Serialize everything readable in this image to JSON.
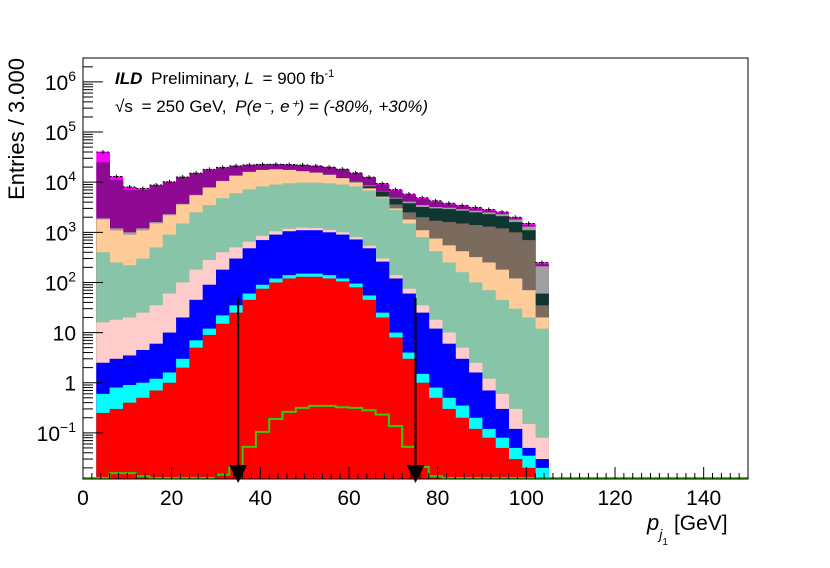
{
  "chart_data": {
    "type": "bar",
    "stacked": true,
    "log_y": true,
    "title": "",
    "experiment": "ILD",
    "status": "Preliminary",
    "lumi_prefix": "L",
    "lumi_value": "= 900 fb",
    "lumi_exp": "-1",
    "sqrt_s_symbol": "√s",
    "energy_text": "= 250 GeV,",
    "polarization_text": "P(e⁻, e⁺) = (-80%, +30%)",
    "xlabel_symbol": "p",
    "xlabel_subscript": "j",
    "xlabel_subsubscript": "1",
    "xlabel_unit": "[GeV]",
    "ylabel": "Entries / 3.000",
    "xlim": [
      0,
      150
    ],
    "ylim": [
      0.012,
      3000000
    ],
    "x_ticks": [
      {
        "value": 0,
        "label": "0"
      },
      {
        "value": 20,
        "label": "20"
      },
      {
        "value": 40,
        "label": "40"
      },
      {
        "value": 60,
        "label": "60"
      },
      {
        "value": 80,
        "label": "80"
      },
      {
        "value": 100,
        "label": "100"
      },
      {
        "value": 120,
        "label": "120"
      },
      {
        "value": 140,
        "label": "140"
      }
    ],
    "y_ticks": [
      {
        "value": 0.1,
        "base": "10",
        "exp": "−1"
      },
      {
        "value": 1,
        "base": "1",
        "exp": ""
      },
      {
        "value": 10,
        "base": "10",
        "exp": ""
      },
      {
        "value": 100,
        "base": "10",
        "exp": "2"
      },
      {
        "value": 1000,
        "base": "10",
        "exp": "3"
      },
      {
        "value": 10000,
        "base": "10",
        "exp": "4"
      },
      {
        "value": 100000,
        "base": "10",
        "exp": "5"
      },
      {
        "value": 1000000,
        "base": "10",
        "exp": "6"
      }
    ],
    "bin_width": 3,
    "bin_lows": [
      0,
      3,
      6,
      9,
      12,
      15,
      18,
      21,
      24,
      27,
      30,
      33,
      36,
      39,
      42,
      45,
      48,
      51,
      54,
      57,
      60,
      63,
      66,
      69,
      72,
      75,
      78,
      81,
      84,
      87,
      90,
      93,
      96,
      99,
      102
    ],
    "series": [
      {
        "name": "red",
        "color": "#ff0000",
        "totals": [
          0.012,
          0.25,
          0.3,
          0.4,
          0.5,
          0.7,
          1.0,
          2,
          5,
          9,
          15,
          25,
          45,
          75,
          100,
          120,
          130,
          130,
          120,
          105,
          80,
          45,
          20,
          8,
          3,
          1.0,
          0.5,
          0.3,
          0.2,
          0.12,
          0.08,
          0.05,
          0.03,
          0.02,
          0.012
        ]
      },
      {
        "name": "cyan",
        "color": "#00ffff",
        "totals": [
          0.012,
          0.6,
          0.8,
          0.9,
          1.0,
          1.2,
          1.6,
          3,
          7,
          12,
          22,
          35,
          60,
          90,
          120,
          140,
          150,
          150,
          140,
          120,
          95,
          55,
          25,
          10,
          4,
          1.5,
          0.8,
          0.5,
          0.35,
          0.2,
          0.12,
          0.08,
          0.05,
          0.035,
          0.02
        ]
      },
      {
        "name": "blue",
        "color": "#0000ff",
        "totals": [
          0.012,
          2.5,
          3.0,
          3.5,
          4.5,
          6,
          10,
          20,
          45,
          90,
          180,
          300,
          480,
          700,
          900,
          1050,
          1100,
          1100,
          1000,
          900,
          720,
          480,
          260,
          120,
          60,
          25,
          12,
          6,
          3,
          1.6,
          0.7,
          0.3,
          0.12,
          0.05,
          0.03
        ]
      },
      {
        "name": "pink",
        "color": "#ffcccc",
        "totals": [
          0.012,
          16,
          18,
          20,
          25,
          35,
          60,
          100,
          180,
          280,
          400,
          500,
          650,
          850,
          1050,
          1180,
          1240,
          1220,
          1120,
          1000,
          800,
          540,
          300,
          140,
          75,
          35,
          18,
          10,
          5,
          2.5,
          1.2,
          0.6,
          0.3,
          0.15,
          0.08
        ]
      },
      {
        "name": "sage",
        "color": "#88c4a8",
        "totals": [
          0.012,
          400,
          250,
          220,
          300,
          500,
          900,
          1500,
          2500,
          3500,
          4800,
          6000,
          7200,
          8200,
          9000,
          9500,
          9800,
          9800,
          9500,
          9000,
          8200,
          6800,
          4800,
          2800,
          1500,
          800,
          420,
          250,
          160,
          100,
          70,
          45,
          30,
          20,
          12
        ]
      },
      {
        "name": "peach",
        "color": "#ffcc99",
        "totals": [
          0.012,
          1800,
          1100,
          900,
          1100,
          1500,
          2200,
          3600,
          5500,
          7800,
          10500,
          13500,
          16000,
          17500,
          18000,
          17500,
          16500,
          15500,
          14000,
          12000,
          9800,
          7500,
          5000,
          3000,
          1800,
          1100,
          750,
          550,
          420,
          320,
          250,
          180,
          120,
          70,
          20
        ]
      },
      {
        "name": "brown",
        "color": "#7b6b5e",
        "totals": [
          0.012,
          1800,
          1100,
          900,
          1100,
          1500,
          2200,
          3600,
          5500,
          7800,
          10500,
          13500,
          16000,
          17500,
          18000,
          17500,
          16500,
          15500,
          14000,
          12000,
          9800,
          7600,
          5300,
          3600,
          2500,
          2000,
          1700,
          1600,
          1500,
          1400,
          1300,
          1200,
          1000,
          700,
          35
        ]
      },
      {
        "name": "darkslate",
        "color": "#103632",
        "totals": [
          0.012,
          1800,
          1100,
          900,
          1100,
          1500,
          2200,
          3600,
          5500,
          7800,
          10500,
          13500,
          16000,
          17500,
          18000,
          17500,
          16500,
          15500,
          14000,
          12000,
          9900,
          8300,
          6500,
          4700,
          3800,
          3200,
          3000,
          2900,
          2700,
          2500,
          2300,
          2100,
          1600,
          1100,
          60
        ]
      },
      {
        "name": "grey",
        "color": "#a0a0a0",
        "totals": [
          0.012,
          1900,
          1200,
          1000,
          1200,
          1600,
          2300,
          3700,
          5600,
          7900,
          10600,
          13600,
          16100,
          17600,
          18100,
          17600,
          16600,
          15600,
          14100,
          12100,
          10200,
          8600,
          6600,
          4900,
          4100,
          3500,
          3200,
          3100,
          2900,
          2700,
          2500,
          2300,
          1800,
          1300,
          210
        ]
      },
      {
        "name": "purple",
        "color": "#8f0a93",
        "totals": [
          0.012,
          25000,
          11000,
          7000,
          7000,
          8500,
          10000,
          12500,
          15000,
          17800,
          19500,
          21000,
          22000,
          22500,
          22600,
          22300,
          21800,
          21000,
          19800,
          18000,
          15000,
          12300,
          9000,
          6800,
          5500,
          4600,
          4000,
          3600,
          3300,
          3000,
          2700,
          2400,
          1900,
          1400,
          230
        ]
      },
      {
        "name": "magenta",
        "color": "#ff00ff",
        "totals": [
          0.012,
          40000,
          13000,
          8000,
          7500,
          8800,
          10200,
          12700,
          15200,
          18000,
          19700,
          21200,
          22200,
          22700,
          22800,
          22500,
          22000,
          21200,
          20000,
          18200,
          15300,
          12600,
          9400,
          7100,
          5800,
          4900,
          4250,
          3800,
          3450,
          3150,
          2850,
          2550,
          2000,
          1500,
          250
        ]
      }
    ],
    "signal": {
      "name": "signal",
      "color": "#33cc00",
      "values": [
        0.012,
        0.012,
        0.015,
        0.015,
        0.013,
        0.012,
        0.012,
        0.012,
        0.012,
        0.012,
        0.014,
        0.02,
        0.05,
        0.1,
        0.18,
        0.25,
        0.3,
        0.33,
        0.33,
        0.31,
        0.3,
        0.27,
        0.22,
        0.13,
        0.05,
        0.02,
        0.013,
        0.012,
        0.012,
        0.012,
        0.012,
        0.012,
        0.012,
        0.012,
        0.012,
        0.012,
        0.012,
        0.012,
        0.012,
        0.012,
        0.012,
        0.012,
        0.012,
        0.012,
        0.012,
        0.012,
        0.012,
        0.012,
        0.012,
        0.012
      ]
    },
    "cuts": [
      {
        "name": "lower-cut",
        "x": 35
      },
      {
        "name": "upper-cut",
        "x": 75
      }
    ]
  }
}
